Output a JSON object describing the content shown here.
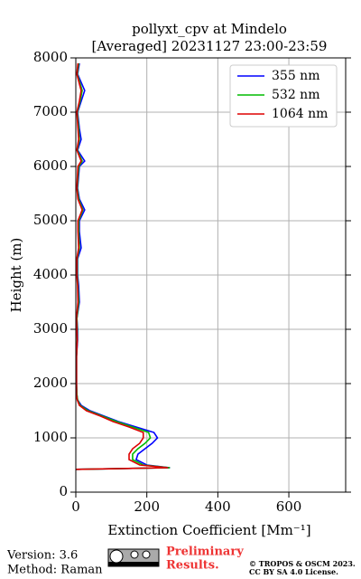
{
  "chart_data": {
    "type": "line",
    "title": [
      "pollyxt_cpv at Mindelo",
      "[Averaged] 20231127 23:00-23:59"
    ],
    "x_label": "Extinction Coefficient [Mm⁻¹]",
    "y_label": "Height (m)",
    "y": [
      420,
      450,
      500,
      600,
      700,
      800,
      900,
      1000,
      1100,
      1200,
      1300,
      1400,
      1500,
      1600,
      1700,
      1800,
      2000,
      2500,
      2800,
      3000,
      3200,
      3500,
      3800,
      4000,
      4300,
      4500,
      4800,
      5000,
      5200,
      5400,
      5600,
      6000,
      6100,
      6300,
      6500,
      6700,
      7000,
      7200,
      7400,
      7700,
      7900
    ],
    "series": [
      {
        "name": "355 nm",
        "color": "#0000ff",
        "values": [
          0,
          265,
          200,
          170,
          175,
          195,
          215,
          230,
          220,
          170,
          120,
          80,
          40,
          15,
          5,
          3,
          2,
          2,
          5,
          5,
          3,
          10,
          8,
          5,
          5,
          15,
          10,
          10,
          25,
          10,
          5,
          10,
          25,
          5,
          15,
          10,
          5,
          15,
          25,
          5,
          10
        ]
      },
      {
        "name": "532 nm",
        "color": "#00bb00",
        "values": [
          0,
          265,
          190,
          160,
          160,
          175,
          195,
          210,
          205,
          160,
          115,
          75,
          35,
          12,
          5,
          3,
          2,
          2,
          4,
          4,
          3,
          8,
          6,
          4,
          4,
          10,
          8,
          8,
          20,
          8,
          4,
          8,
          18,
          4,
          10,
          8,
          4,
          12,
          18,
          4,
          8
        ]
      },
      {
        "name": "1064 nm",
        "color": "#dd0000",
        "values": [
          0,
          260,
          180,
          150,
          150,
          160,
          180,
          190,
          190,
          150,
          105,
          70,
          30,
          10,
          4,
          2,
          2,
          2,
          4,
          3,
          2,
          6,
          5,
          3,
          3,
          8,
          6,
          6,
          18,
          6,
          3,
          6,
          15,
          3,
          8,
          6,
          3,
          10,
          15,
          3,
          6
        ]
      }
    ],
    "xlim": [
      0,
      760
    ],
    "xticks": [
      0,
      200,
      400,
      600
    ],
    "ylim": [
      0,
      8000
    ],
    "yticks": [
      0,
      1000,
      2000,
      3000,
      4000,
      5000,
      6000,
      7000,
      8000
    ],
    "grid": true,
    "legend": "upper right"
  },
  "footer": {
    "version": "Version: 3.6",
    "method": "Method: Raman",
    "status": [
      "Preliminary",
      "Results."
    ],
    "copyright": [
      "© TROPOS & OSCM 2023.",
      "CC BY SA 4.0 License."
    ]
  }
}
